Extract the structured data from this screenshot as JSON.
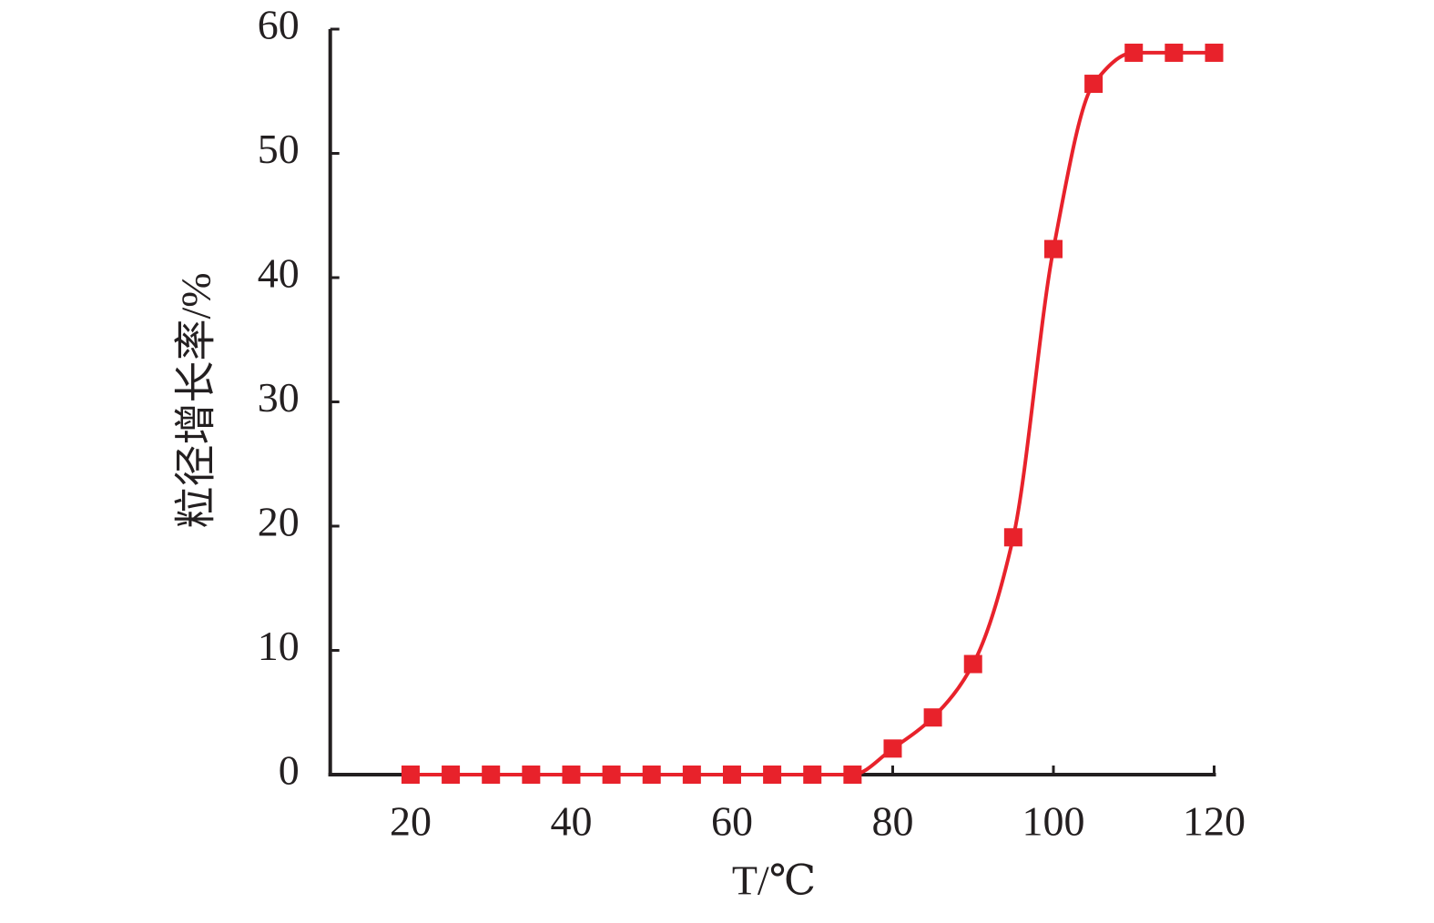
{
  "chart_data": {
    "type": "line",
    "xlabel": "T/℃",
    "ylabel": "粒径增长率/%",
    "x": [
      20,
      25,
      30,
      35,
      40,
      45,
      50,
      55,
      60,
      65,
      70,
      75,
      80,
      85,
      90,
      95,
      100,
      105,
      110,
      115,
      120
    ],
    "series": [
      {
        "color": "#e8222b",
        "values": [
          0,
          0,
          0,
          0,
          0,
          0,
          0,
          0,
          0,
          0,
          0,
          0,
          2.1,
          4.6,
          8.9,
          19.1,
          42.3,
          55.6,
          58.1,
          58.1,
          58.1
        ]
      }
    ],
    "xlim": [
      10,
      120
    ],
    "xticks": [
      20,
      40,
      60,
      80,
      100,
      120
    ],
    "ylim": [
      0,
      60
    ],
    "yticks": [
      0,
      10,
      20,
      30,
      40,
      50,
      60
    ],
    "grid": false,
    "smooth": true,
    "marker": "square"
  }
}
